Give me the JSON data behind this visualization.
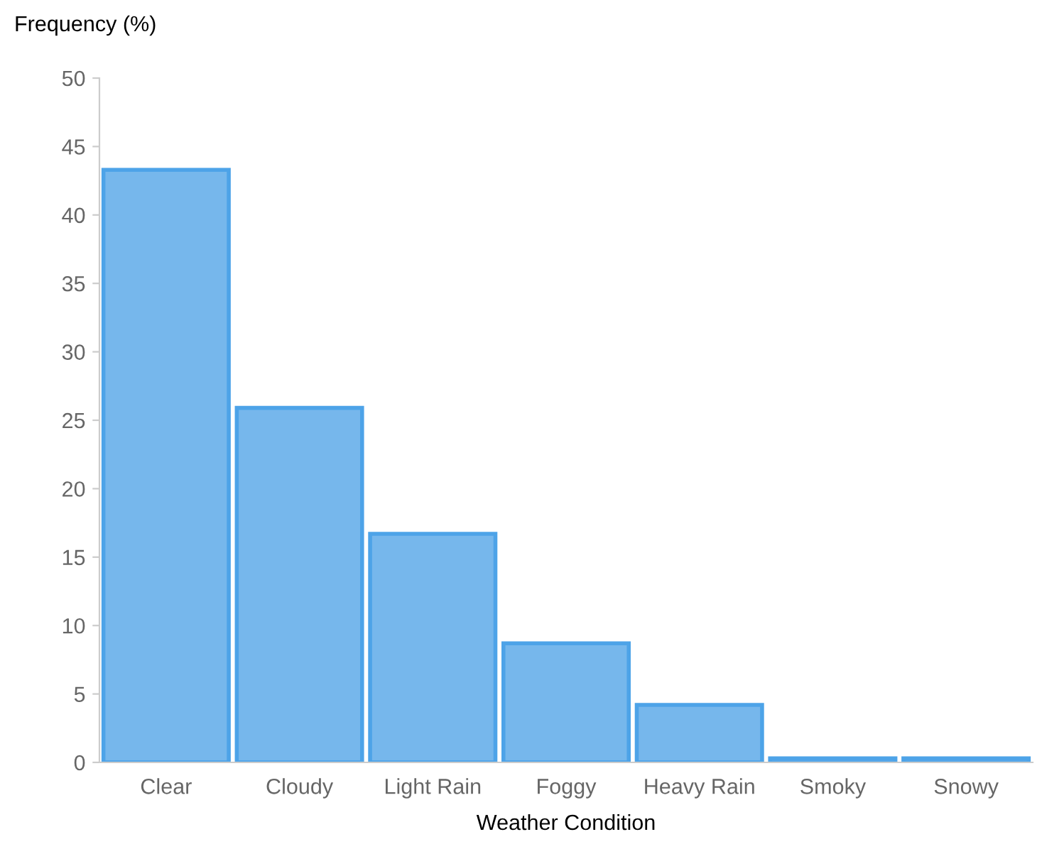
{
  "chart_data": {
    "type": "bar",
    "xlabel": "Weather Condition",
    "ylabel": "Frequency (%)",
    "categories": [
      "Clear",
      "Cloudy",
      "Light Rain",
      "Foggy",
      "Heavy Rain",
      "Smoky",
      "Snowy"
    ],
    "values": [
      43.3,
      25.9,
      16.7,
      8.7,
      4.2,
      0.3,
      0.3
    ],
    "color": "#76b7ec",
    "ylim": [
      0,
      50
    ],
    "yticks": [
      0,
      5,
      10,
      15,
      20,
      25,
      30,
      35,
      40,
      45,
      50
    ],
    "grid": false
  }
}
